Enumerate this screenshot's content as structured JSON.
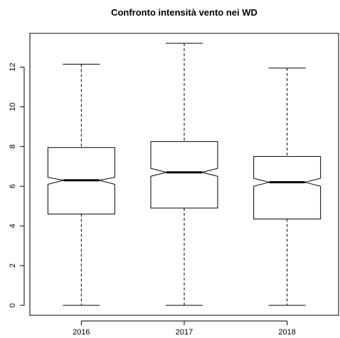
{
  "chart_data": {
    "type": "boxplot",
    "title": "Confronto intensità vento nei WD",
    "xlabel": "",
    "ylabel": "",
    "categories": [
      "2016",
      "2017",
      "2018"
    ],
    "boxes": [
      {
        "category": "2016",
        "min": 0.0,
        "q1": 4.6,
        "median": 6.3,
        "q3": 7.95,
        "max": 12.15,
        "notch_low": 6.1,
        "notch_high": 6.45
      },
      {
        "category": "2017",
        "min": 0.0,
        "q1": 4.9,
        "median": 6.7,
        "q3": 8.25,
        "max": 13.2,
        "notch_low": 6.5,
        "notch_high": 6.9
      },
      {
        "category": "2018",
        "min": 0.0,
        "q1": 4.35,
        "median": 6.2,
        "q3": 7.5,
        "max": 11.95,
        "notch_low": 6.0,
        "notch_high": 6.4
      }
    ],
    "yticks": [
      0,
      2,
      4,
      6,
      8,
      10,
      12
    ],
    "ylim": [
      -0.5,
      13.7
    ],
    "grid": false,
    "notched": true,
    "whisker_style": "dashed"
  },
  "colors": {
    "stroke": "#000000",
    "fill": "#ffffff"
  }
}
